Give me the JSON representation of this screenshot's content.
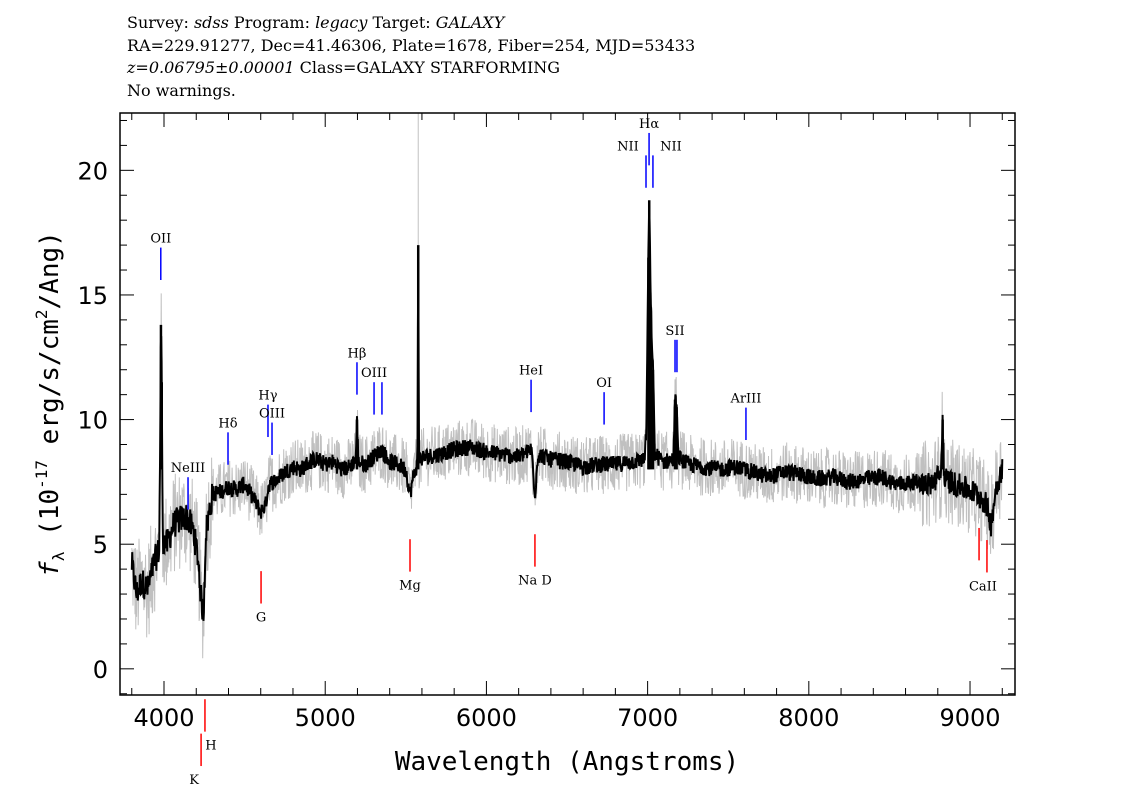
{
  "header": {
    "survey_label": "Survey:",
    "survey": "sdss",
    "program_label": "Program:",
    "program": "legacy",
    "target_label": "Target:",
    "target": "GALAXY",
    "line2": "RA=229.91277, Dec=41.46306, Plate=1678, Fiber=254, MJD=53433",
    "redshift": "z=0.06795±0.00001",
    "class": "Class=GALAXY STARFORMING",
    "warnings": "No warnings."
  },
  "chart_data": {
    "type": "line",
    "xlabel": "Wavelength (Angstroms)",
    "ylabel": "fλ (10^-17 erg/s/cm^2/Ang)",
    "ylabel_parts": {
      "f": "f",
      "sub": "λ",
      "pre": " (10",
      "exp": "-17",
      "mid": " erg/s/cm",
      "exp2": "2",
      "post": "/Ang)"
    },
    "xlim": [
      3727,
      9279
    ],
    "ylim": [
      -1.05,
      22.3
    ],
    "xticks": [
      4000,
      5000,
      6000,
      7000,
      8000,
      9000
    ],
    "yticks": [
      0,
      5,
      10,
      15,
      20
    ],
    "grid": false,
    "colors": {
      "flux": "#000000",
      "uncertainty": "#c0c0c0",
      "emission": "#0000ff",
      "absorption": "#ff0000"
    },
    "series": [
      {
        "points": [
          [
            3800,
            4.2
          ],
          [
            3830,
            3.0
          ],
          [
            3860,
            3.5
          ],
          [
            3900,
            3.2
          ],
          [
            3940,
            4.3
          ],
          [
            3970,
            4.8
          ],
          [
            3976,
            9
          ],
          [
            3981,
            13.8
          ],
          [
            3986,
            11.5
          ],
          [
            3992,
            5.2
          ],
          [
            4020,
            5.0
          ],
          [
            4060,
            5.8
          ],
          [
            4100,
            6.0
          ],
          [
            4140,
            6.1
          ],
          [
            4180,
            5.6
          ],
          [
            4210,
            4.5
          ],
          [
            4230,
            2.8
          ],
          [
            4245,
            2.2
          ],
          [
            4260,
            5.5
          ],
          [
            4300,
            7.0
          ],
          [
            4350,
            7.1
          ],
          [
            4400,
            7.3
          ],
          [
            4450,
            7.2
          ],
          [
            4500,
            7.4
          ],
          [
            4550,
            6.9
          ],
          [
            4600,
            6.3
          ],
          [
            4630,
            6.6
          ],
          [
            4650,
            7.4
          ],
          [
            4700,
            7.6
          ],
          [
            4750,
            7.9
          ],
          [
            4800,
            8.1
          ],
          [
            4850,
            8.0
          ],
          [
            4900,
            8.3
          ],
          [
            4950,
            8.4
          ],
          [
            5000,
            8.2
          ],
          [
            5050,
            8.3
          ],
          [
            5100,
            8.0
          ],
          [
            5150,
            8.1
          ],
          [
            5190,
            8.4
          ],
          [
            5197,
            10.0
          ],
          [
            5205,
            8.3
          ],
          [
            5250,
            8.2
          ],
          [
            5300,
            8.5
          ],
          [
            5350,
            8.8
          ],
          [
            5400,
            8.3
          ],
          [
            5450,
            8.2
          ],
          [
            5500,
            8.0
          ],
          [
            5526,
            7.0
          ],
          [
            5550,
            7.8
          ],
          [
            5572,
            8.2
          ],
          [
            5577,
            17.0
          ],
          [
            5582,
            8.4
          ],
          [
            5620,
            8.5
          ],
          [
            5700,
            8.6
          ],
          [
            5800,
            8.8
          ],
          [
            5900,
            8.9
          ],
          [
            6000,
            8.7
          ],
          [
            6100,
            8.6
          ],
          [
            6200,
            8.5
          ],
          [
            6280,
            8.8
          ],
          [
            6301,
            7.0
          ],
          [
            6320,
            8.6
          ],
          [
            6400,
            8.4
          ],
          [
            6500,
            8.3
          ],
          [
            6600,
            8.1
          ],
          [
            6700,
            8.2
          ],
          [
            6800,
            8.2
          ],
          [
            6900,
            8.3
          ],
          [
            6980,
            8.4
          ],
          [
            6992,
            9.5
          ],
          [
            7005,
            16.5
          ],
          [
            7010,
            18.8
          ],
          [
            7020,
            14.5
          ],
          [
            7033,
            12.0
          ],
          [
            7045,
            8.6
          ],
          [
            7100,
            8.3
          ],
          [
            7160,
            8.4
          ],
          [
            7170,
            10.8
          ],
          [
            7180,
            10.5
          ],
          [
            7190,
            8.5
          ],
          [
            7250,
            8.2
          ],
          [
            7350,
            8.1
          ],
          [
            7450,
            8.0
          ],
          [
            7550,
            8.1
          ],
          [
            7650,
            7.9
          ],
          [
            7750,
            7.7
          ],
          [
            7850,
            7.9
          ],
          [
            7950,
            7.8
          ],
          [
            8050,
            7.6
          ],
          [
            8150,
            7.7
          ],
          [
            8250,
            7.5
          ],
          [
            8350,
            7.6
          ],
          [
            8450,
            7.7
          ],
          [
            8550,
            7.4
          ],
          [
            8650,
            7.5
          ],
          [
            8750,
            7.4
          ],
          [
            8820,
            7.8
          ],
          [
            8830,
            10.0
          ],
          [
            8840,
            7.6
          ],
          [
            8950,
            7.3
          ],
          [
            9050,
            7.0
          ],
          [
            9100,
            6.6
          ],
          [
            9130,
            5.8
          ],
          [
            9160,
            7.2
          ],
          [
            9200,
            8.1
          ]
        ]
      }
    ],
    "line_labels": [
      {
        "name": "OII",
        "wavelength": 3980,
        "kind": "emission",
        "offset": 7
      },
      {
        "name": "NeIII",
        "wavelength": 4149,
        "kind": "emission",
        "offset": 0
      },
      {
        "name": "Hδ",
        "wavelength": 4397,
        "kind": "emission",
        "offset": 0.5
      },
      {
        "name": "Hγ",
        "wavelength": 4645,
        "kind": "emission",
        "offset": 1.7
      },
      {
        "name": "OIII",
        "wavelength": 4670,
        "kind": "emission",
        "offset": 0.7
      },
      {
        "name": "Hβ",
        "wavelength": 5197,
        "kind": "emission",
        "offset": 2.4
      },
      {
        "name": "OIII",
        "wavelength": 5303,
        "kind": "emission",
        "offset": 1.6
      },
      {
        "name": "",
        "wavelength": 5352,
        "kind": "emission",
        "offset": 1.6
      },
      {
        "name": "HeI",
        "wavelength": 6277,
        "kind": "emission",
        "offset": 1.7
      },
      {
        "name": "OI",
        "wavelength": 6730,
        "kind": "emission",
        "offset": 1.2
      },
      {
        "name": "NII",
        "wavelength": 6990,
        "kind": "emission",
        "offset": 10.7
      },
      {
        "name": "Hα",
        "wavelength": 7009,
        "kind": "emission",
        "offset": 11.6
      },
      {
        "name": "NII",
        "wavelength": 7033,
        "kind": "emission",
        "offset": 10.7
      },
      {
        "name": "SII",
        "wavelength": 7170,
        "kind": "emission",
        "offset": 3.3
      },
      {
        "name": "",
        "wavelength": 7182,
        "kind": "emission",
        "offset": 3.3
      },
      {
        "name": "ArIII",
        "wavelength": 7610,
        "kind": "emission",
        "offset": 0.8
      },
      {
        "name": "K",
        "wavelength": 4230,
        "kind": "absorption",
        "offset": 5.4
      },
      {
        "name": "H",
        "wavelength": 4254,
        "kind": "absorption",
        "offset": 5.4
      },
      {
        "name": "G",
        "wavelength": 4602,
        "kind": "absorption",
        "offset": 2.4
      },
      {
        "name": "Mg",
        "wavelength": 5526,
        "kind": "absorption",
        "offset": 1.8
      },
      {
        "name": "Na D",
        "wavelength": 6301,
        "kind": "absorption",
        "offset": 1.6
      },
      {
        "name": "",
        "wavelength": 9056,
        "kind": "absorption",
        "offset": 1.3
      },
      {
        "name": "CaII",
        "wavelength": 9105,
        "kind": "absorption",
        "offset": 1.3
      }
    ]
  }
}
